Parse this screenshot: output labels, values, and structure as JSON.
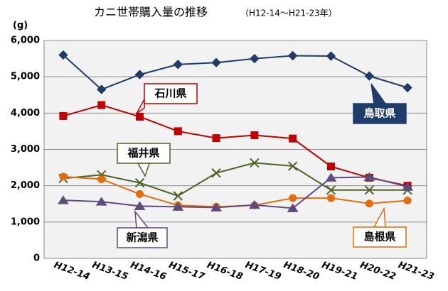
{
  "chart_data": {
    "type": "line",
    "title": "カニ世帯購入量の推移",
    "subtitle": "（H12-14～H21-23年）",
    "y_label": "(g)",
    "categories": [
      "H12-14",
      "H13-15",
      "H14-16",
      "H15-17",
      "H16-18",
      "H17-19",
      "H18-20",
      "H19-21",
      "H20-22",
      "H21-23"
    ],
    "series": [
      {
        "name": "鳥取県",
        "color": "#1f3c6a",
        "marker": "diamond",
        "values": [
          5600,
          4650,
          5060,
          5340,
          5390,
          5500,
          5580,
          5570,
          5020,
          4700
        ]
      },
      {
        "name": "石川県",
        "color": "#c00000",
        "marker": "square",
        "values": [
          3920,
          4220,
          3900,
          3500,
          3310,
          3390,
          3300,
          2530,
          2220,
          2000
        ]
      },
      {
        "name": "福井県",
        "color": "#4f6228",
        "marker": "x",
        "values": [
          2200,
          2300,
          2080,
          1720,
          2350,
          2630,
          2540,
          1880,
          1880,
          1880
        ]
      },
      {
        "name": "島根県",
        "color": "#e46c0a",
        "marker": "circle",
        "values": [
          2250,
          2180,
          1770,
          1460,
          1420,
          1460,
          1660,
          1660,
          1510,
          1590
        ]
      },
      {
        "name": "新潟県",
        "color": "#604a7b",
        "marker": "triangle",
        "values": [
          1600,
          1560,
          1440,
          1420,
          1400,
          1470,
          1380,
          2220,
          2240,
          1970
        ]
      }
    ],
    "ylim": [
      0,
      6000
    ],
    "yticks": [
      0,
      {
        "value": 1000,
        "label": "1,000"
      },
      {
        "value": 2000,
        "label": "2,000"
      },
      {
        "value": 3000,
        "label": "3,000"
      },
      {
        "value": 4000,
        "label": "4,000"
      },
      {
        "value": 5000,
        "label": "5,000"
      },
      {
        "value": 6000,
        "label": "6,000"
      }
    ],
    "grid": true
  }
}
